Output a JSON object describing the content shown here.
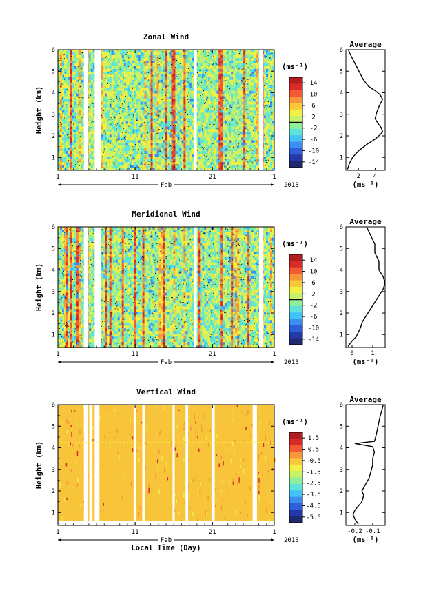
{
  "chart_data": [
    {
      "type": "heatmap",
      "title": "Zonal Wind",
      "ylabel": "Height (km)",
      "xlabel": "",
      "x_ticks": [
        "1",
        "11",
        "21",
        "1"
      ],
      "month_label": "Feb",
      "year_label": "2013",
      "y_ticks": [
        "1",
        "2",
        "3",
        "4",
        "5",
        "6"
      ],
      "ylim": [
        0.4,
        6
      ],
      "colorbar_unit": "(ms⁻¹)",
      "colorbar_ticks": [
        "14",
        "10",
        "6",
        "2",
        "-2",
        "-6",
        "-10",
        "-14"
      ],
      "colorbar_range": [
        -16,
        16
      ],
      "profile": {
        "title": "Average",
        "xlabel": "(ms⁻¹)",
        "x_ticks": [
          "2",
          "4"
        ],
        "xlim": [
          0.5,
          5.2
        ],
        "points": [
          [
            0.7,
            0.45
          ],
          [
            0.9,
            0.7
          ],
          [
            1.3,
            1.0
          ],
          [
            2.0,
            1.3
          ],
          [
            3.0,
            1.6
          ],
          [
            4.0,
            1.85
          ],
          [
            4.6,
            2.05
          ],
          [
            4.9,
            2.2
          ],
          [
            4.7,
            2.4
          ],
          [
            4.3,
            2.6
          ],
          [
            4.0,
            2.8
          ],
          [
            4.2,
            3.1
          ],
          [
            4.5,
            3.4
          ],
          [
            4.9,
            3.7
          ],
          [
            4.6,
            3.9
          ],
          [
            4.0,
            4.1
          ],
          [
            3.2,
            4.3
          ],
          [
            2.6,
            4.6
          ],
          [
            2.2,
            4.9
          ],
          [
            1.8,
            5.2
          ],
          [
            1.4,
            5.5
          ],
          [
            1.0,
            5.8
          ],
          [
            0.8,
            6.0
          ]
        ]
      }
    },
    {
      "type": "heatmap",
      "title": "Meridional Wind",
      "ylabel": "Height (km)",
      "xlabel": "",
      "x_ticks": [
        "1",
        "11",
        "21",
        "1"
      ],
      "month_label": "Feb",
      "year_label": "2013",
      "y_ticks": [
        "1",
        "2",
        "3",
        "4",
        "5",
        "6"
      ],
      "ylim": [
        0.4,
        6
      ],
      "colorbar_unit": "(ms⁻¹)",
      "colorbar_ticks": [
        "14",
        "10",
        "6",
        "2",
        "-2",
        "-6",
        "-10",
        "-14"
      ],
      "colorbar_range": [
        -16,
        16
      ],
      "profile": {
        "title": "Average",
        "xlabel": "(ms⁻¹)",
        "x_ticks": [
          "0",
          "1"
        ],
        "xlim": [
          -0.3,
          1.6
        ],
        "points": [
          [
            -0.2,
            0.45
          ],
          [
            0.0,
            0.7
          ],
          [
            0.2,
            0.9
          ],
          [
            0.3,
            1.1
          ],
          [
            0.4,
            1.3
          ],
          [
            0.5,
            1.6
          ],
          [
            0.7,
            1.9
          ],
          [
            0.9,
            2.2
          ],
          [
            1.1,
            2.5
          ],
          [
            1.3,
            2.8
          ],
          [
            1.5,
            3.1
          ],
          [
            1.6,
            3.4
          ],
          [
            1.5,
            3.7
          ],
          [
            1.3,
            4.0
          ],
          [
            1.3,
            4.4
          ],
          [
            1.1,
            4.8
          ],
          [
            1.1,
            5.2
          ],
          [
            0.9,
            5.6
          ],
          [
            0.7,
            6.0
          ]
        ]
      }
    },
    {
      "type": "heatmap",
      "title": "Vertical Wind",
      "ylabel": "Height (km)",
      "xlabel": "Local Time (Day)",
      "x_ticks": [
        "1",
        "11",
        "21",
        "1"
      ],
      "month_label": "Feb",
      "year_label": "2013",
      "y_ticks": [
        "1",
        "2",
        "3",
        "4",
        "5",
        "6"
      ],
      "ylim": [
        0.4,
        6
      ],
      "colorbar_unit": "(ms⁻¹)",
      "colorbar_ticks": [
        "1.5",
        "0.5",
        "-0.5",
        "-1.5",
        "-2.5",
        "-3.5",
        "-4.5",
        "-5.5"
      ],
      "colorbar_range": [
        -6,
        2
      ],
      "profile": {
        "title": "Average",
        "xlabel": "(ms⁻¹)",
        "x_ticks": [
          "-0.2",
          "-0.1"
        ],
        "xlim": [
          -0.25,
          -0.03
        ],
        "points": [
          [
            -0.18,
            0.45
          ],
          [
            -0.2,
            0.7
          ],
          [
            -0.21,
            0.9
          ],
          [
            -0.2,
            1.1
          ],
          [
            -0.18,
            1.3
          ],
          [
            -0.16,
            1.5
          ],
          [
            -0.15,
            1.8
          ],
          [
            -0.16,
            2.0
          ],
          [
            -0.14,
            2.3
          ],
          [
            -0.12,
            2.6
          ],
          [
            -0.11,
            2.9
          ],
          [
            -0.1,
            3.2
          ],
          [
            -0.1,
            3.5
          ],
          [
            -0.09,
            3.8
          ],
          [
            -0.1,
            4.05
          ],
          [
            -0.2,
            4.2
          ],
          [
            -0.09,
            4.3
          ],
          [
            -0.08,
            4.6
          ],
          [
            -0.07,
            5.0
          ],
          [
            -0.06,
            5.4
          ],
          [
            -0.05,
            5.7
          ],
          [
            -0.04,
            6.0
          ]
        ]
      }
    }
  ]
}
